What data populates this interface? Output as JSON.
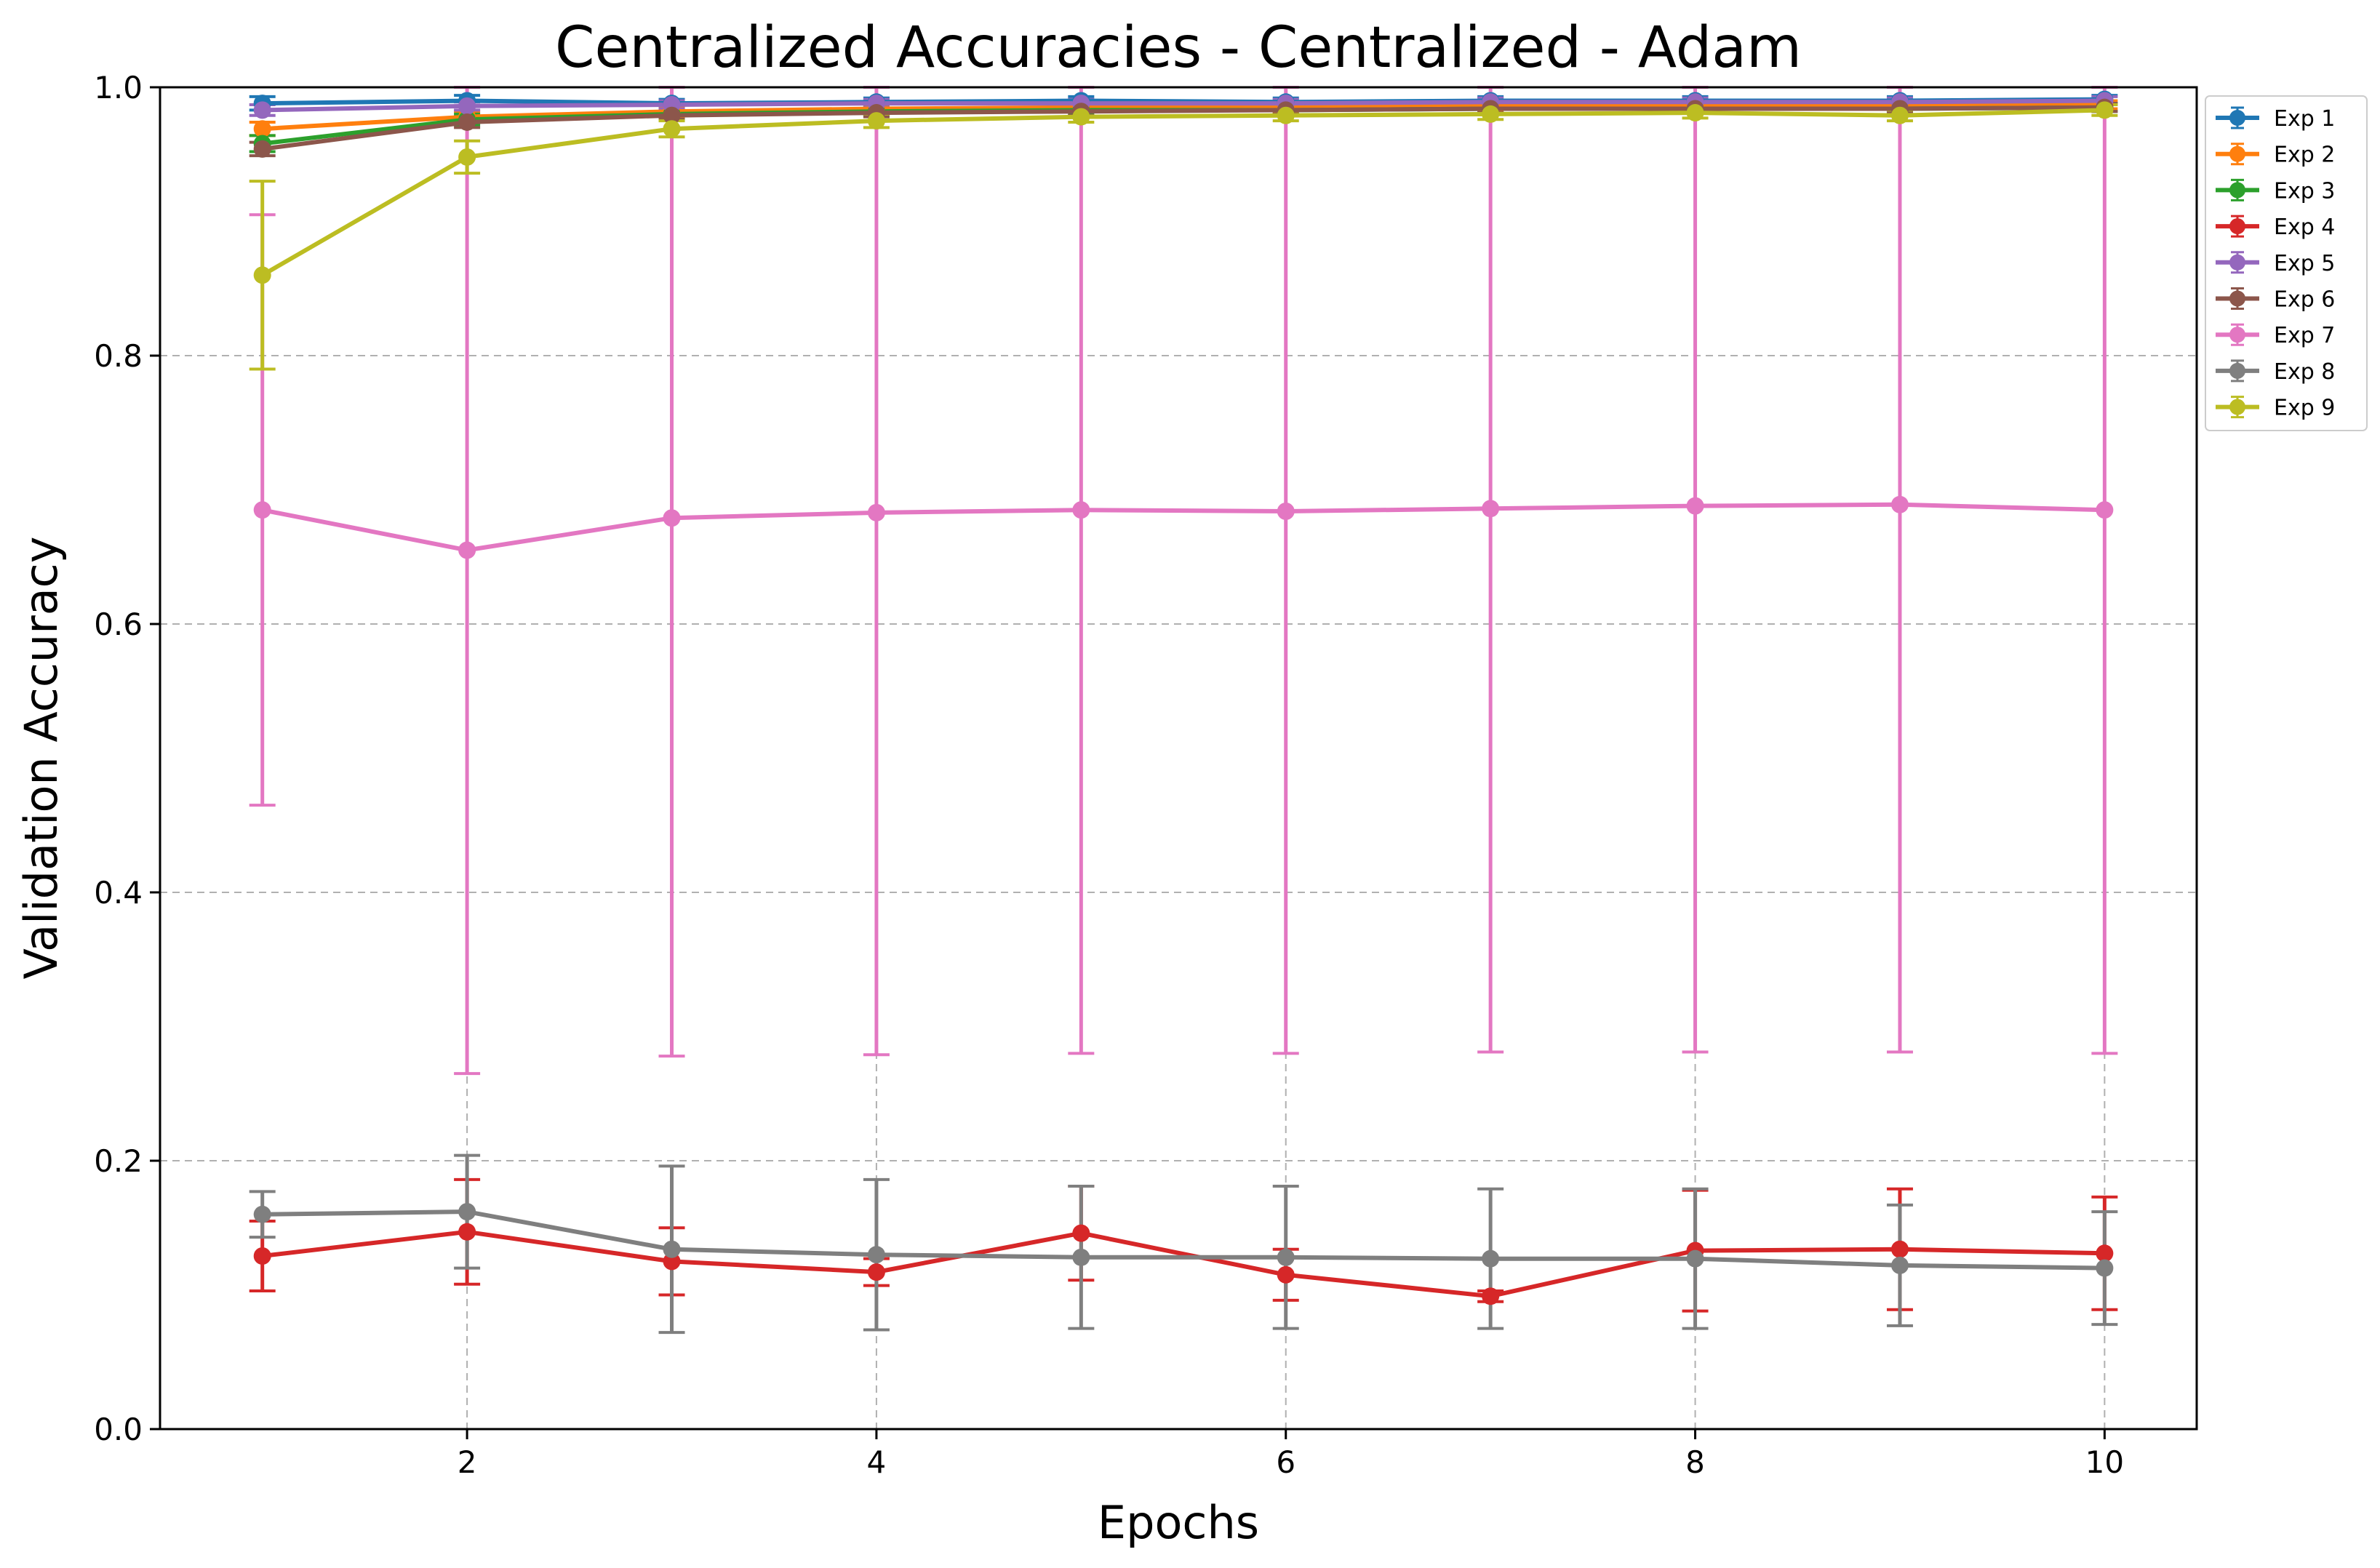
{
  "chart_data": {
    "type": "line",
    "title": "Centralized Accuracies - Centralized - Adam",
    "xlabel": "Epochs",
    "ylabel": "Validation Accuracy",
    "xlim": [
      0.5,
      10.45
    ],
    "ylim": [
      0.0,
      1.0
    ],
    "xticks": [
      2,
      4,
      6,
      8,
      10
    ],
    "xtick_labels": [
      "2",
      "4",
      "6",
      "8",
      "10"
    ],
    "yticks": [
      0.0,
      0.2,
      0.4,
      0.6,
      0.8,
      1.0
    ],
    "ytick_labels": [
      "0.0",
      "0.2",
      "0.4",
      "0.6",
      "0.8",
      "1.0"
    ],
    "grid": true,
    "error_bars": true,
    "legend_position": "outside-upper-right",
    "x": [
      1,
      2,
      3,
      4,
      5,
      6,
      7,
      8,
      9,
      10
    ],
    "series": [
      {
        "name": "Exp 1",
        "color": "#1f77b4",
        "values": [
          0.988,
          0.99,
          0.988,
          0.989,
          0.99,
          0.989,
          0.99,
          0.99,
          0.99,
          0.991
        ],
        "errors": [
          0.005,
          0.004,
          0.003,
          0.003,
          0.003,
          0.003,
          0.003,
          0.003,
          0.003,
          0.003
        ]
      },
      {
        "name": "Exp 2",
        "color": "#ff7f0e",
        "values": [
          0.969,
          0.978,
          0.982,
          0.984,
          0.985,
          0.985,
          0.986,
          0.986,
          0.986,
          0.987
        ],
        "errors": [
          0.005,
          0.004,
          0.004,
          0.003,
          0.003,
          0.003,
          0.003,
          0.003,
          0.003,
          0.003
        ]
      },
      {
        "name": "Exp 3",
        "color": "#2ca02c",
        "values": [
          0.958,
          0.976,
          0.98,
          0.982,
          0.983,
          0.983,
          0.984,
          0.984,
          0.984,
          0.985
        ],
        "errors": [
          0.006,
          0.004,
          0.004,
          0.003,
          0.003,
          0.003,
          0.003,
          0.003,
          0.003,
          0.003
        ]
      },
      {
        "name": "Exp 4",
        "color": "#d62728",
        "values": [
          0.129,
          0.147,
          0.125,
          0.117,
          0.146,
          0.115,
          0.099,
          0.133,
          0.134,
          0.131
        ],
        "errors": [
          0.026,
          0.039,
          0.025,
          0.01,
          0.035,
          0.019,
          0.004,
          0.045,
          0.045,
          0.042
        ]
      },
      {
        "name": "Exp 5",
        "color": "#9467bd",
        "values": [
          0.983,
          0.986,
          0.987,
          0.988,
          0.988,
          0.988,
          0.989,
          0.989,
          0.989,
          0.99
        ],
        "errors": [
          0.004,
          0.003,
          0.003,
          0.003,
          0.003,
          0.003,
          0.003,
          0.003,
          0.003,
          0.003
        ]
      },
      {
        "name": "Exp 6",
        "color": "#8c564b",
        "values": [
          0.954,
          0.974,
          0.979,
          0.981,
          0.982,
          0.983,
          0.984,
          0.984,
          0.984,
          0.985
        ],
        "errors": [
          0.005,
          0.004,
          0.003,
          0.003,
          0.003,
          0.003,
          0.003,
          0.003,
          0.003,
          0.003
        ]
      },
      {
        "name": "Exp 7",
        "color": "#e377c2",
        "values": [
          0.685,
          0.655,
          0.679,
          0.683,
          0.685,
          0.684,
          0.686,
          0.688,
          0.689,
          0.685
        ],
        "errors": [
          0.22,
          0.39,
          0.401,
          0.404,
          0.405,
          0.404,
          0.405,
          0.407,
          0.408,
          0.405
        ]
      },
      {
        "name": "Exp 8",
        "color": "#7f7f7f",
        "values": [
          0.16,
          0.162,
          0.134,
          0.13,
          0.128,
          0.128,
          0.127,
          0.127,
          0.122,
          0.12
        ],
        "errors": [
          0.017,
          0.042,
          0.062,
          0.056,
          0.053,
          0.053,
          0.052,
          0.052,
          0.045,
          0.042
        ]
      },
      {
        "name": "Exp 9",
        "color": "#bcbd22",
        "values": [
          0.86,
          0.948,
          0.969,
          0.975,
          0.978,
          0.979,
          0.98,
          0.981,
          0.979,
          0.983
        ],
        "errors": [
          0.07,
          0.012,
          0.006,
          0.005,
          0.004,
          0.004,
          0.004,
          0.004,
          0.004,
          0.004
        ]
      }
    ]
  }
}
